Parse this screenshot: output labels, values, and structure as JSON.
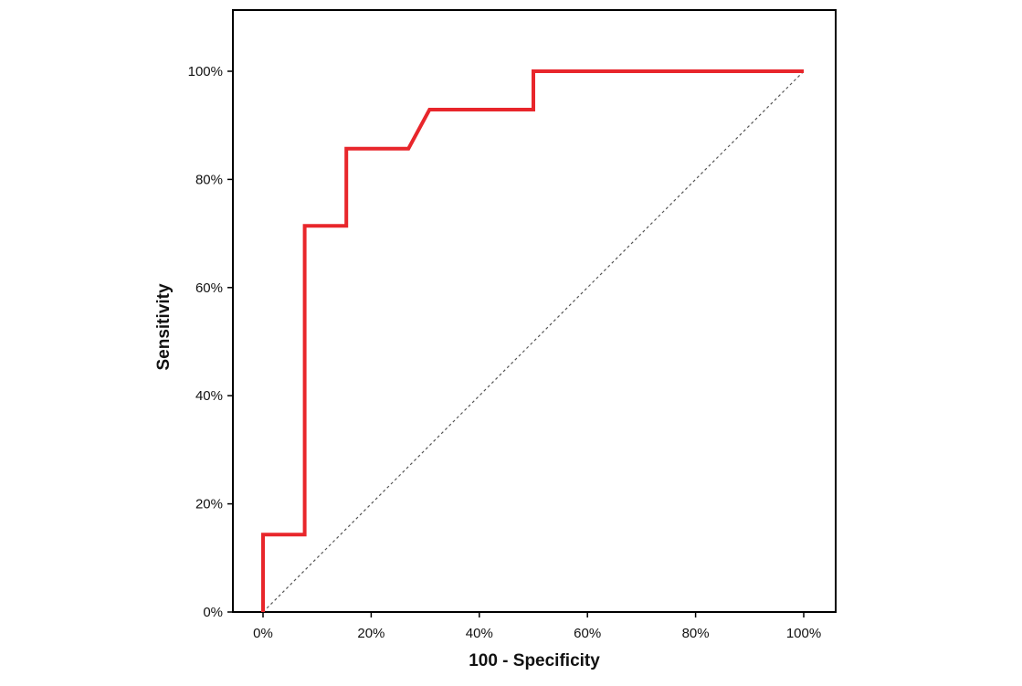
{
  "chart_data": {
    "type": "line",
    "title": "",
    "xlabel": "100 - Specificity",
    "ylabel": "Sensitivity",
    "xlim": [
      0,
      100
    ],
    "ylim": [
      0,
      100
    ],
    "x_ticks": [
      "0%",
      "20%",
      "40%",
      "60%",
      "80%",
      "100%"
    ],
    "y_ticks": [
      "0%",
      "20%",
      "40%",
      "60%",
      "80%",
      "100%"
    ],
    "grid": false,
    "series": [
      {
        "color": "#e8262b",
        "x": [
          0,
          0,
          7.7,
          7.7,
          15.4,
          15.4,
          26.9,
          30.8,
          50,
          50,
          100
        ],
        "y": [
          0,
          14.3,
          14.3,
          71.4,
          71.4,
          85.7,
          85.7,
          92.9,
          92.9,
          100,
          100
        ]
      },
      {
        "color": "#555555",
        "style": "dashed",
        "x": [
          0,
          100
        ],
        "y": [
          0,
          100
        ]
      }
    ]
  }
}
